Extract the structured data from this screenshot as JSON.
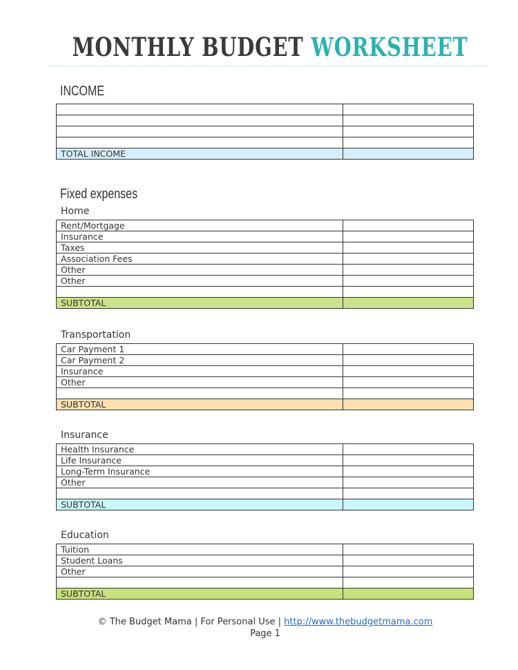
{
  "title": {
    "part1": "MONTHLY BUDGET",
    "part2": "WORKSHEET"
  },
  "income": {
    "heading": "INCOME",
    "rows": [
      "",
      "",
      "",
      ""
    ],
    "total_label": "TOTAL INCOME",
    "total_color": "#d5eef9"
  },
  "fixed_expenses": {
    "heading": "Fixed expenses",
    "sections": [
      {
        "name": "Home",
        "rows": [
          "Rent/Mortgage",
          "Insurance",
          "Taxes",
          "Association Fees",
          "Other",
          "Other",
          ""
        ],
        "subtotal_label": "SUBTOTAL",
        "subtotal_color": "#cde38a"
      },
      {
        "name": "Transportation",
        "rows": [
          "Car Payment 1",
          "Car Payment 2",
          "Insurance",
          "Other",
          ""
        ],
        "subtotal_label": "SUBTOTAL",
        "subtotal_color": "#fbdfae"
      },
      {
        "name": "Insurance",
        "rows": [
          "Health Insurance",
          "Life Insurance",
          "Long-Term Insurance",
          "Other",
          ""
        ],
        "subtotal_label": "SUBTOTAL",
        "subtotal_color": "#c8f8f8"
      },
      {
        "name": "Education",
        "rows": [
          "Tuition",
          "Student Loans",
          "Other",
          ""
        ],
        "subtotal_label": "SUBTOTAL",
        "subtotal_color": "#c9e17c"
      }
    ]
  },
  "footer": {
    "copyright": "© The Budget Mama  |  For Personal Use  |",
    "link": "http://www.thebudgetmama.com",
    "page": "Page 1"
  }
}
